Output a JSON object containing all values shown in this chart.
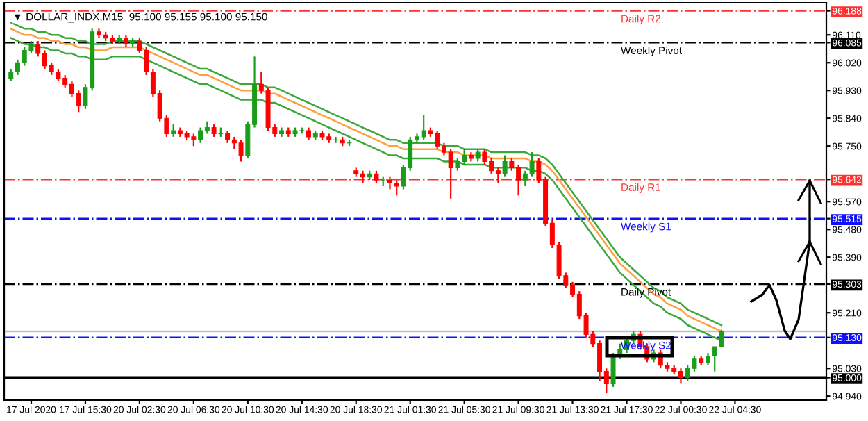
{
  "chart_data": {
    "type": "candlestick",
    "title": "▼ DOLLAR_INDX,M15  95.100 95.155 95.100 95.150",
    "categories": [
      null,
      null,
      null,
      "17 Jul 2020",
      null,
      null,
      null,
      null,
      null,
      null,
      null,
      "17 Jul 15:30",
      null,
      null,
      null,
      null,
      null,
      null,
      null,
      "20 Jul 02:30",
      null,
      null,
      null,
      null,
      null,
      null,
      null,
      "20 Jul 06:30",
      null,
      null,
      null,
      null,
      null,
      null,
      null,
      "20 Jul 10:30",
      null,
      null,
      null,
      null,
      null,
      null,
      null,
      "20 Jul 14:30",
      null,
      null,
      null,
      null,
      null,
      null,
      null,
      "20 Jul 18:30",
      null,
      null,
      null,
      null,
      null,
      null,
      null,
      "21 Jul 01:30",
      null,
      null,
      null,
      null,
      null,
      null,
      null,
      "21 Jul 05:30",
      null,
      null,
      null,
      null,
      null,
      null,
      null,
      "21 Jul 09:30",
      null,
      null,
      null,
      null,
      null,
      null,
      null,
      "21 Jul 13:30",
      null,
      null,
      null,
      null,
      null,
      null,
      null,
      "21 Jul 17:30",
      null,
      null,
      null,
      null,
      null,
      null,
      null,
      "22 Jul 00:30",
      null,
      null,
      null,
      null,
      null,
      null,
      null,
      "22 Jul 04:30",
      null,
      null,
      null,
      null,
      null,
      null,
      null,
      null,
      null,
      null,
      null,
      null,
      null
    ],
    "ohlc": [
      [
        95.97,
        96.0,
        95.96,
        95.99
      ],
      [
        95.99,
        96.03,
        95.98,
        96.02
      ],
      [
        96.02,
        96.07,
        96.01,
        96.06
      ],
      [
        96.06,
        96.09,
        96.05,
        96.08
      ],
      [
        96.08,
        96.09,
        96.04,
        96.05
      ],
      [
        96.05,
        96.06,
        96.0,
        96.01
      ],
      [
        96.01,
        96.02,
        95.98,
        95.99
      ],
      [
        95.99,
        96.0,
        95.96,
        95.97
      ],
      [
        95.97,
        95.98,
        95.94,
        95.95
      ],
      [
        95.95,
        95.96,
        95.91,
        95.92
      ],
      [
        95.92,
        95.93,
        95.86,
        95.88
      ],
      [
        95.88,
        95.95,
        95.87,
        95.94
      ],
      [
        95.94,
        96.13,
        95.93,
        96.12
      ],
      [
        96.12,
        96.13,
        96.1,
        96.11
      ],
      [
        96.11,
        96.12,
        96.09,
        96.1
      ],
      [
        96.1,
        96.11,
        96.08,
        96.09
      ],
      [
        96.09,
        96.11,
        96.08,
        96.1
      ],
      [
        96.1,
        96.11,
        96.07,
        96.08
      ],
      [
        96.08,
        96.1,
        96.07,
        96.09
      ],
      [
        96.09,
        96.1,
        96.05,
        96.06
      ],
      [
        96.06,
        96.07,
        95.98,
        95.99
      ],
      [
        95.99,
        96.0,
        95.91,
        95.92
      ],
      [
        95.92,
        95.93,
        95.83,
        95.84
      ],
      [
        95.84,
        95.85,
        95.78,
        95.79
      ],
      [
        95.79,
        95.82,
        95.78,
        95.8
      ],
      [
        95.8,
        95.81,
        95.78,
        95.79
      ],
      [
        95.79,
        95.8,
        95.77,
        95.78
      ],
      [
        95.78,
        95.79,
        95.75,
        95.77
      ],
      [
        95.77,
        95.81,
        95.76,
        95.8
      ],
      [
        95.8,
        95.83,
        95.79,
        95.81
      ],
      [
        95.81,
        95.82,
        95.78,
        95.79
      ],
      [
        95.79,
        95.81,
        95.78,
        95.79
      ],
      [
        95.79,
        95.8,
        95.76,
        95.77
      ],
      [
        95.77,
        95.78,
        95.74,
        95.76
      ],
      [
        95.76,
        95.77,
        95.7,
        95.72
      ],
      [
        95.72,
        95.83,
        95.71,
        95.82
      ],
      [
        95.82,
        96.04,
        95.81,
        95.95
      ],
      [
        95.95,
        95.99,
        95.92,
        95.93
      ],
      [
        95.93,
        95.94,
        95.8,
        95.81
      ],
      [
        95.81,
        95.82,
        95.78,
        95.79
      ],
      [
        95.79,
        95.81,
        95.78,
        95.8
      ],
      [
        95.8,
        95.81,
        95.78,
        95.79
      ],
      [
        95.79,
        95.81,
        95.78,
        95.8
      ],
      [
        95.8,
        95.81,
        95.79,
        95.8
      ],
      [
        95.8,
        95.81,
        95.77,
        95.78
      ],
      [
        95.78,
        95.8,
        95.77,
        95.79
      ],
      [
        95.79,
        95.8,
        95.77,
        95.78
      ],
      [
        95.78,
        95.79,
        95.76,
        95.77
      ],
      [
        95.77,
        95.78,
        95.76,
        95.77
      ],
      [
        95.77,
        95.78,
        95.75,
        95.76
      ],
      [
        95.76,
        95.77,
        95.75,
        95.76
      ],
      [
        95.67,
        95.68,
        95.65,
        95.66
      ],
      [
        95.66,
        95.67,
        95.63,
        95.65
      ],
      [
        95.65,
        95.67,
        95.64,
        95.66
      ],
      [
        95.66,
        95.67,
        95.63,
        95.64
      ],
      [
        95.64,
        95.65,
        95.62,
        95.64
      ],
      [
        95.64,
        95.65,
        95.61,
        95.63
      ],
      [
        95.63,
        95.64,
        95.59,
        95.62
      ],
      [
        95.62,
        95.69,
        95.61,
        95.68
      ],
      [
        95.68,
        95.78,
        95.67,
        95.77
      ],
      [
        95.77,
        95.79,
        95.76,
        95.78
      ],
      [
        95.78,
        95.85,
        95.77,
        95.8
      ],
      [
        95.8,
        95.81,
        95.78,
        95.79
      ],
      [
        95.79,
        95.8,
        95.74,
        95.75
      ],
      [
        95.75,
        95.76,
        95.72,
        95.73
      ],
      [
        95.73,
        95.74,
        95.58,
        95.68
      ],
      [
        95.68,
        95.71,
        95.67,
        95.7
      ],
      [
        95.7,
        95.74,
        95.69,
        95.72
      ],
      [
        95.72,
        95.73,
        95.7,
        95.71
      ],
      [
        95.71,
        95.74,
        95.7,
        95.73
      ],
      [
        95.73,
        95.74,
        95.69,
        95.7
      ],
      [
        95.7,
        95.71,
        95.66,
        95.67
      ],
      [
        95.67,
        95.68,
        95.63,
        95.66
      ],
      [
        95.66,
        95.72,
        95.65,
        95.7
      ],
      [
        95.7,
        95.71,
        95.67,
        95.68
      ],
      [
        95.68,
        95.69,
        95.59,
        95.64
      ],
      [
        95.64,
        95.67,
        95.62,
        95.66
      ],
      [
        95.66,
        95.73,
        95.65,
        95.7
      ],
      [
        95.7,
        95.71,
        95.63,
        95.64
      ],
      [
        95.64,
        95.65,
        95.49,
        95.5
      ],
      [
        95.5,
        95.51,
        95.42,
        95.43
      ],
      [
        95.43,
        95.44,
        95.32,
        95.33
      ],
      [
        95.33,
        95.34,
        95.29,
        95.3
      ],
      [
        95.3,
        95.31,
        95.26,
        95.27
      ],
      [
        95.27,
        95.28,
        95.19,
        95.2
      ],
      [
        95.2,
        95.21,
        95.13,
        95.14
      ],
      [
        95.14,
        95.15,
        95.1,
        95.11
      ],
      [
        95.11,
        95.12,
        94.99,
        95.02
      ],
      [
        95.02,
        95.03,
        94.95,
        94.98
      ],
      [
        94.98,
        95.08,
        94.97,
        95.07
      ],
      [
        95.07,
        95.11,
        95.06,
        95.09
      ],
      [
        95.09,
        95.13,
        95.08,
        95.12
      ],
      [
        95.12,
        95.15,
        95.11,
        95.14
      ],
      [
        95.14,
        95.15,
        95.09,
        95.1
      ],
      [
        95.1,
        95.11,
        95.05,
        95.06
      ],
      [
        95.06,
        95.09,
        95.05,
        95.08
      ],
      [
        95.08,
        95.09,
        95.03,
        95.04
      ],
      [
        95.04,
        95.05,
        95.02,
        95.03
      ],
      [
        95.03,
        95.04,
        95.01,
        95.02
      ],
      [
        95.02,
        95.03,
        94.98,
        95.0
      ],
      [
        95.0,
        95.04,
        94.99,
        95.03
      ],
      [
        95.03,
        95.07,
        95.02,
        95.06
      ],
      [
        95.06,
        95.07,
        95.04,
        95.05
      ],
      [
        95.05,
        95.08,
        95.04,
        95.07
      ],
      [
        95.07,
        95.1,
        95.02,
        95.1
      ],
      [
        95.1,
        95.155,
        95.1,
        95.15
      ],
      null,
      null,
      null,
      null,
      null,
      null,
      null,
      null,
      null,
      null,
      null,
      null,
      null,
      null,
      null
    ],
    "colors": [
      "#1a9e1a",
      "#1a9e1a",
      "#1a9e1a",
      "#1a9e1a",
      "#ff0000",
      "#ff0000",
      "#ff0000",
      "#ff0000",
      "#ff0000",
      "#ff0000",
      "#ff0000",
      "#1a9e1a",
      "#1a9e1a",
      "#ff0000",
      "#ff0000",
      "#ff0000",
      "#1a9e1a",
      "#ff0000",
      "#1a9e1a",
      "#ff0000",
      "#ff0000",
      "#ff0000",
      "#ff0000",
      "#ff0000",
      "#1a9e1a",
      "#ff0000",
      "#ff0000",
      "#ff0000",
      "#1a9e1a",
      "#1a9e1a",
      "#ff0000",
      "#1a9e1a",
      "#ff0000",
      "#ff0000",
      "#ff0000",
      "#1a9e1a",
      "#1a9e1a",
      "#ff0000",
      "#ff0000",
      "#ff0000",
      "#1a9e1a",
      "#ff0000",
      "#1a9e1a",
      "#1a9e1a",
      "#ff0000",
      "#1a9e1a",
      "#ff0000",
      "#ff0000",
      "#1a9e1a",
      "#ff0000",
      "#1a9e1a",
      "#ff0000",
      "#ff0000",
      "#1a9e1a",
      "#ff0000",
      "#1a9e1a",
      "#ff0000",
      "#ff0000",
      "#1a9e1a",
      "#1a9e1a",
      "#1a9e1a",
      "#1a9e1a",
      "#ff0000",
      "#ff0000",
      "#ff0000",
      "#ff0000",
      "#1a9e1a",
      "#1a9e1a",
      "#ff0000",
      "#1a9e1a",
      "#ff0000",
      "#ff0000",
      "#ff0000",
      "#1a9e1a",
      "#ff0000",
      "#ff0000",
      "#1a9e1a",
      "#1a9e1a",
      "#ff0000",
      "#ff0000",
      "#ff0000",
      "#ff0000",
      "#ff0000",
      "#ff0000",
      "#ff0000",
      "#ff0000",
      "#ff0000",
      "#ff0000",
      "#ff0000",
      "#1a9e1a",
      "#1a9e1a",
      "#1a9e1a",
      "#1a9e1a",
      "#ff0000",
      "#ff0000",
      "#1a9e1a",
      "#ff0000",
      "#ff0000",
      "#ff0000",
      "#ff0000",
      "#1a9e1a",
      "#1a9e1a",
      "#ff0000",
      "#1a9e1a",
      "#1a9e1a",
      "#1a9e1a",
      null,
      null,
      null,
      null,
      null,
      null,
      null,
      null,
      null,
      null,
      null,
      null,
      null,
      null,
      null
    ],
    "series": [
      {
        "type": "line",
        "color": "#3aa83a",
        "values": [
          96.15,
          96.14,
          96.13,
          96.13,
          96.12,
          96.12,
          96.11,
          96.11,
          96.1,
          96.1,
          96.09,
          96.09,
          96.08,
          96.08,
          96.08,
          96.09,
          96.09,
          96.09,
          96.09,
          96.09,
          96.08,
          96.07,
          96.06,
          96.05,
          96.04,
          96.03,
          96.02,
          96.01,
          96.0,
          96.0,
          95.99,
          95.98,
          95.97,
          95.96,
          95.95,
          95.95,
          95.95,
          95.95,
          95.94,
          95.94,
          95.93,
          95.92,
          95.91,
          95.9,
          95.89,
          95.88,
          95.87,
          95.86,
          95.85,
          95.84,
          95.83,
          95.82,
          95.81,
          95.8,
          95.79,
          95.78,
          95.77,
          95.77,
          95.76,
          95.76,
          95.76,
          95.76,
          95.76,
          95.76,
          95.75,
          95.75,
          95.75,
          95.74,
          95.74,
          95.74,
          95.74,
          95.73,
          95.73,
          95.73,
          95.73,
          95.73,
          95.73,
          95.72,
          95.72,
          95.71,
          95.69,
          95.66,
          95.63,
          95.6,
          95.57,
          95.54,
          95.51,
          95.48,
          95.45,
          95.42,
          95.39,
          95.37,
          95.35,
          95.33,
          95.31,
          95.29,
          95.28,
          95.26,
          95.25,
          95.24,
          95.22,
          95.21,
          95.2,
          95.19,
          95.18,
          95.17,
          null,
          null,
          null,
          null,
          null,
          null,
          null,
          null,
          null,
          null,
          null,
          null,
          null,
          null,
          null
        ]
      },
      {
        "type": "line",
        "color": "#ffa040",
        "values": [
          96.13,
          96.12,
          96.11,
          96.11,
          96.1,
          96.1,
          96.09,
          96.09,
          96.08,
          96.08,
          96.07,
          96.07,
          96.06,
          96.06,
          96.06,
          96.07,
          96.07,
          96.07,
          96.07,
          96.07,
          96.06,
          96.05,
          96.04,
          96.03,
          96.02,
          96.01,
          96.0,
          95.99,
          95.98,
          95.98,
          95.97,
          95.96,
          95.95,
          95.94,
          95.93,
          95.93,
          95.93,
          95.93,
          95.92,
          95.92,
          95.91,
          95.9,
          95.89,
          95.88,
          95.87,
          95.86,
          95.85,
          95.84,
          95.83,
          95.82,
          95.81,
          95.8,
          95.79,
          95.78,
          95.77,
          95.76,
          95.75,
          95.75,
          95.74,
          95.74,
          95.74,
          95.74,
          95.74,
          95.74,
          95.73,
          95.73,
          95.73,
          95.72,
          95.72,
          95.72,
          95.72,
          95.71,
          95.71,
          95.71,
          95.71,
          95.71,
          95.71,
          95.7,
          95.7,
          95.69,
          95.67,
          95.64,
          95.61,
          95.58,
          95.55,
          95.52,
          95.49,
          95.46,
          95.43,
          95.4,
          95.37,
          95.35,
          95.33,
          95.31,
          95.29,
          95.27,
          95.26,
          95.24,
          95.23,
          95.22,
          95.2,
          95.19,
          95.18,
          95.17,
          95.16,
          95.15,
          null,
          null,
          null,
          null,
          null,
          null,
          null,
          null,
          null,
          null,
          null,
          null,
          null,
          null,
          null
        ]
      },
      {
        "type": "line",
        "color": "#3aa83a",
        "values": [
          96.1,
          96.09,
          96.08,
          96.08,
          96.07,
          96.07,
          96.06,
          96.06,
          96.05,
          96.05,
          96.04,
          96.04,
          96.03,
          96.03,
          96.03,
          96.04,
          96.04,
          96.04,
          96.04,
          96.04,
          96.03,
          96.02,
          96.01,
          96.0,
          95.99,
          95.98,
          95.97,
          95.96,
          95.95,
          95.95,
          95.94,
          95.93,
          95.92,
          95.91,
          95.9,
          95.9,
          95.9,
          95.9,
          95.89,
          95.89,
          95.88,
          95.87,
          95.86,
          95.85,
          95.84,
          95.83,
          95.82,
          95.81,
          95.8,
          95.79,
          95.78,
          95.77,
          95.76,
          95.75,
          95.74,
          95.73,
          95.72,
          95.72,
          95.71,
          95.71,
          95.71,
          95.71,
          95.71,
          95.71,
          95.7,
          95.7,
          95.7,
          95.69,
          95.69,
          95.69,
          95.69,
          95.68,
          95.68,
          95.68,
          95.68,
          95.68,
          95.68,
          95.67,
          95.67,
          95.66,
          95.64,
          95.61,
          95.58,
          95.55,
          95.52,
          95.49,
          95.46,
          95.43,
          95.4,
          95.37,
          95.34,
          95.32,
          95.3,
          95.28,
          95.26,
          95.24,
          95.23,
          95.21,
          95.2,
          95.19,
          95.17,
          95.16,
          95.15,
          95.14,
          95.13,
          95.12,
          null,
          null,
          null,
          null,
          null,
          null,
          null,
          null,
          null,
          null,
          null,
          null,
          null,
          null,
          null
        ]
      }
    ],
    "ylim": [
      94.927,
      96.214
    ],
    "yticks": [
      {
        "value": 96.188,
        "label": "96.188"
      },
      {
        "value": 96.085,
        "label": "96.085"
      },
      {
        "value": 95.642,
        "label": "95.642"
      },
      {
        "value": 95.515,
        "label": "95.515"
      },
      {
        "value": 95.303,
        "label": "95.303"
      },
      {
        "value": 95.13,
        "label": "95.130"
      },
      {
        "value": 95.0,
        "label": "95.000"
      },
      {
        "value": 96.11,
        "label": "96.110"
      },
      {
        "value": 96.02,
        "label": "96.020"
      },
      {
        "value": 95.93,
        "label": "95.930"
      },
      {
        "value": 95.84,
        "label": "95.840"
      },
      {
        "value": 95.75,
        "label": "95.750"
      },
      {
        "value": 95.57,
        "label": "95.570"
      },
      {
        "value": 95.48,
        "label": "95.480"
      },
      {
        "value": 95.39,
        "label": "95.390"
      },
      {
        "value": 95.21,
        "label": "95.210"
      },
      {
        "value": 95.03,
        "label": "95.030"
      },
      {
        "value": 94.94,
        "label": "94.940"
      }
    ],
    "ref_lines": [
      {
        "axis": "y",
        "value": 96.188,
        "label": "Daily R2",
        "color": "#ff3030",
        "line_style": "dashdot"
      },
      {
        "axis": "y",
        "value": 96.085,
        "label": "Weekly Pivot",
        "color": "#000000",
        "line_style": "dashdot"
      },
      {
        "axis": "y",
        "value": 95.642,
        "label": "Daily R1",
        "color": "#ff3030",
        "line_style": "dashdot"
      },
      {
        "axis": "y",
        "value": 95.515,
        "label": "Weekly S1",
        "color": "#1010ff",
        "line_style": "dashdot"
      },
      {
        "axis": "y",
        "value": 95.303,
        "label": "Daily Pivot",
        "color": "#000000",
        "line_style": "dashdot"
      },
      {
        "axis": "y",
        "value": 95.15,
        "label": null,
        "color": "#c0c0c0",
        "line_style": "solid"
      },
      {
        "axis": "y",
        "value": 95.13,
        "label": "Weekly S2",
        "color": "#1010ff",
        "line_style": "dashdot"
      },
      {
        "axis": "y",
        "value": 95.0,
        "label": null,
        "color": "#000000",
        "line_style": "solid"
      }
    ],
    "grid": false
  }
}
